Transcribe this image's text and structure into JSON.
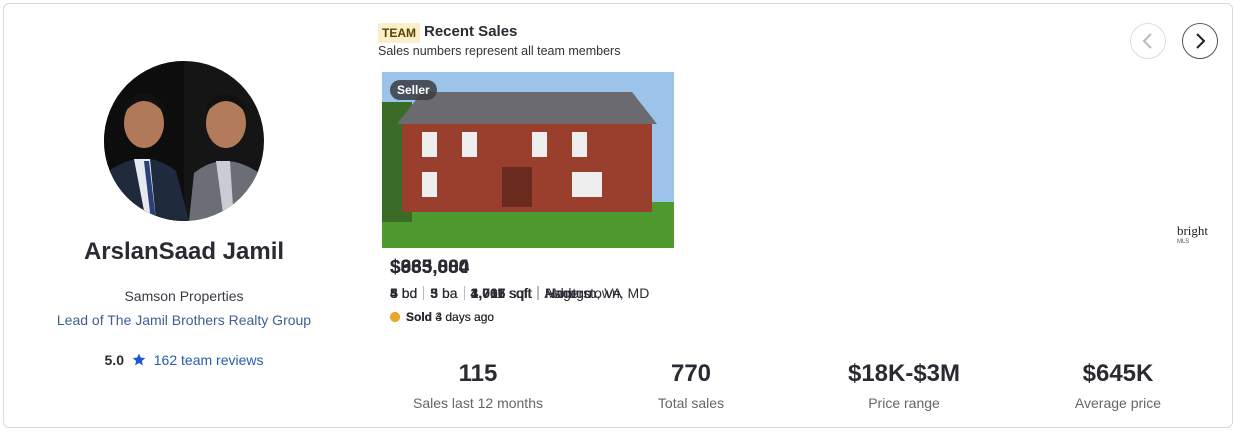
{
  "agent": {
    "name": "ArslanSaad Jamil",
    "company": "Samson Properties",
    "role": "Lead of The Jamil Brothers Realty Group",
    "rating": "5.0",
    "reviews": "162 team reviews"
  },
  "sales": {
    "badge": "TEAM",
    "title": "Recent Sales",
    "subtitle": "Sales numbers represent all team members",
    "listings": [
      {
        "tag": "Seller",
        "price": "$365,000",
        "beds": "3",
        "beds_unit": "bd",
        "baths": "3",
        "baths_unit": "ba",
        "sqft": "1,707",
        "sqft_unit": "sqft",
        "location": "Hagerstown, MD",
        "status": "Sold",
        "when": "3 days ago",
        "mls": "bright",
        "mls_sub": "MLS"
      },
      {
        "tag": "Seller",
        "price": "$935,000",
        "beds": "4",
        "beds_unit": "bd",
        "baths": "5",
        "baths_unit": "ba",
        "sqft": "4,011",
        "sqft_unit": "sqft",
        "location": "Ashburn, VA",
        "status": "Sold",
        "when": "4 days ago",
        "mls": "bright",
        "mls_sub": "MLS"
      },
      {
        "tag": "Seller",
        "price": "$683,884",
        "beds": "5",
        "beds_unit": "bd",
        "baths": "3",
        "baths_unit": "ba",
        "sqft": "3,066",
        "sqft_unit": "sqft",
        "location": "Montgo",
        "status": "Sold",
        "when": "4 days ago"
      }
    ]
  },
  "stats": [
    {
      "value": "115",
      "label": "Sales last 12 months"
    },
    {
      "value": "770",
      "label": "Total sales"
    },
    {
      "value": "$18K-$3M",
      "label": "Price range"
    },
    {
      "value": "$645K",
      "label": "Average price"
    }
  ]
}
